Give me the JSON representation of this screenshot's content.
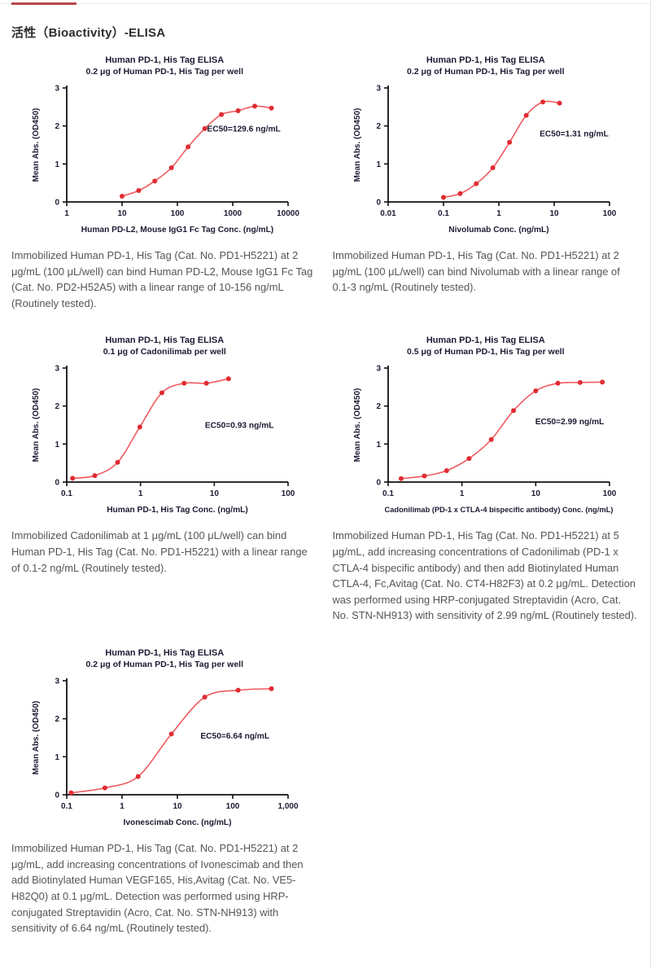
{
  "header": {
    "heading": "活性（Bioactivity）-ELISA",
    "accent_color": "#b9484d"
  },
  "chart_data": [
    {
      "type": "line",
      "title": "Human PD-1, His Tag ELISA",
      "subtitle": "0.2 μg of Human PD-1, His Tag per well",
      "ylabel": "Mean Abs. (OD450)",
      "xlabel": "Human PD-L2, Mouse IgG1 Fc Tag Conc. (ng/mL)",
      "x_scale": "log",
      "x_range": [
        1,
        10000
      ],
      "y_range": [
        0,
        3
      ],
      "x_ticks": [
        1,
        10,
        100,
        1000,
        10000
      ],
      "x_tick_labels": [
        "1",
        "10",
        "100",
        "1000",
        "10000"
      ],
      "y_ticks": [
        0,
        1,
        2,
        3
      ],
      "points": [
        [
          10,
          0.15
        ],
        [
          20,
          0.3
        ],
        [
          39,
          0.55
        ],
        [
          78,
          0.9
        ],
        [
          156,
          1.45
        ],
        [
          313,
          1.93
        ],
        [
          625,
          2.3
        ],
        [
          1250,
          2.4
        ],
        [
          2500,
          2.52
        ],
        [
          5000,
          2.47
        ]
      ],
      "ec50_label": "EC50=129.6 ng/mL",
      "annotation_pos": {
        "x_frac": 0.8,
        "y_od": 1.85
      },
      "curve_color": "#f05a5e",
      "point_color": "#e02c32",
      "grid": false,
      "legend": "none"
    },
    {
      "type": "line",
      "title": "Human PD-1, His Tag ELISA",
      "subtitle": "0.2 μg of Human PD-1, His Tag per well",
      "ylabel": "Mean Abs. (OD450)",
      "xlabel": "Nivolumab Conc. (ng/mL)",
      "x_scale": "log",
      "x_range": [
        0.01,
        100
      ],
      "y_range": [
        0,
        3
      ],
      "x_ticks": [
        0.01,
        0.1,
        1,
        10,
        100
      ],
      "x_tick_labels": [
        "0.01",
        "0.1",
        "1",
        "10",
        "100"
      ],
      "y_ticks": [
        0,
        1,
        2,
        3
      ],
      "points": [
        [
          0.1,
          0.12
        ],
        [
          0.2,
          0.22
        ],
        [
          0.39,
          0.48
        ],
        [
          0.78,
          0.9
        ],
        [
          1.56,
          1.57
        ],
        [
          3.13,
          2.28
        ],
        [
          6.25,
          2.63
        ],
        [
          12.5,
          2.6
        ]
      ],
      "ec50_label": "EC50=1.31 ng/mL",
      "annotation_pos": {
        "x_frac": 0.84,
        "y_od": 1.72
      },
      "curve_color": "#f05a5e",
      "point_color": "#e02c32",
      "grid": false,
      "legend": "none"
    },
    {
      "type": "line",
      "title": "Human PD-1, His Tag ELISA",
      "subtitle": "0.1 μg of Cadonilimab per well",
      "ylabel": "Mean Abs. (OD450)",
      "xlabel": "Human PD-1, His Tag Conc. (ng/mL)",
      "x_scale": "log",
      "x_range": [
        0.1,
        100
      ],
      "y_range": [
        0,
        3
      ],
      "x_ticks": [
        0.1,
        1,
        10,
        100
      ],
      "x_tick_labels": [
        "0.1",
        "1",
        "10",
        "100"
      ],
      "y_ticks": [
        0,
        1,
        2,
        3
      ],
      "points": [
        [
          0.12,
          0.1
        ],
        [
          0.24,
          0.17
        ],
        [
          0.49,
          0.52
        ],
        [
          0.98,
          1.45
        ],
        [
          1.95,
          2.35
        ],
        [
          3.9,
          2.6
        ],
        [
          7.8,
          2.6
        ],
        [
          15.6,
          2.72
        ]
      ],
      "ec50_label": "EC50=0.93 ng/mL",
      "annotation_pos": {
        "x_frac": 0.78,
        "y_od": 1.42
      },
      "curve_color": "#f05a5e",
      "point_color": "#e02c32",
      "grid": false,
      "legend": "none"
    },
    {
      "type": "line",
      "title": "Human PD-1, His Tag ELISA",
      "subtitle": "0.5 μg of Human PD-1, His Tag per well",
      "ylabel": "Mean Abs. (OD450)",
      "xlabel": "Cadonilimab (PD-1 x CTLA-4 bispecific antibody) Conc. (ng/mL)",
      "x_scale": "log",
      "x_range": [
        0.1,
        100
      ],
      "y_range": [
        0,
        3
      ],
      "x_ticks": [
        0.1,
        1,
        10,
        100
      ],
      "x_tick_labels": [
        "0.1",
        "1",
        "10",
        "100"
      ],
      "y_ticks": [
        0,
        1,
        2,
        3
      ],
      "points": [
        [
          0.15,
          0.09
        ],
        [
          0.31,
          0.16
        ],
        [
          0.62,
          0.3
        ],
        [
          1.25,
          0.62
        ],
        [
          2.5,
          1.12
        ],
        [
          5,
          1.88
        ],
        [
          10,
          2.4
        ],
        [
          20,
          2.6
        ],
        [
          40,
          2.62
        ],
        [
          80,
          2.63
        ]
      ],
      "ec50_label": "EC50=2.99 ng/mL",
      "annotation_pos": {
        "x_frac": 0.82,
        "y_od": 1.52
      },
      "curve_color": "#f05a5e",
      "point_color": "#e02c32",
      "grid": false,
      "legend": "none"
    },
    {
      "type": "line",
      "title": "Human PD-1, His Tag ELISA",
      "subtitle": "0.2 μg of Human PD-1, His Tag per well",
      "ylabel": "Mean Abs. (OD450)",
      "xlabel": "Ivonescimab Conc. (ng/mL)",
      "x_scale": "log",
      "x_range": [
        0.1,
        1000
      ],
      "y_range": [
        0,
        3
      ],
      "x_ticks": [
        0.1,
        1,
        10,
        100,
        1000
      ],
      "x_tick_labels": [
        "0.1",
        "1",
        "10",
        "100",
        "1,000"
      ],
      "y_ticks": [
        0,
        1,
        2,
        3
      ],
      "points": [
        [
          0.12,
          0.05
        ],
        [
          0.49,
          0.18
        ],
        [
          1.95,
          0.48
        ],
        [
          7.8,
          1.6
        ],
        [
          31.2,
          2.57
        ],
        [
          125,
          2.75
        ],
        [
          500,
          2.79
        ]
      ],
      "ec50_label": "EC50=6.64 ng/mL",
      "annotation_pos": {
        "x_frac": 0.76,
        "y_od": 1.48
      },
      "curve_color": "#f05a5e",
      "point_color": "#e02c32",
      "grid": false,
      "legend": "none"
    }
  ],
  "captions": [
    "Immobilized Human PD-1, His Tag (Cat. No. PD1-H5221) at 2 μg/mL (100 μL/well) can bind Human PD-L2, Mouse IgG1 Fc Tag (Cat. No. PD2-H52A5) with a linear range of 10-156 ng/mL (Routinely tested).",
    "Immobilized Human PD-1, His Tag (Cat. No. PD1-H5221) at 2 μg/mL (100 μL/well) can bind Nivolumab with a linear range of 0.1-3 ng/mL (Routinely tested).",
    "Immobilized Cadonilimab at 1 μg/mL (100 μL/well) can bind Human PD-1, His Tag (Cat. No. PD1-H5221) with a linear range of 0.1-2 ng/mL (Routinely tested).",
    "Immobilized Human PD-1, His Tag (Cat. No. PD1-H5221) at 5 μg/mL, add increasing concentrations of Cadonilimab (PD-1 x CTLA-4 bispecific antibody) and then add Biotinylated Human CTLA-4, Fc,Avitag (Cat. No. CT4-H82F3) at 0.2 μg/mL. Detection was performed using HRP-conjugated Streptavidin (Acro, Cat. No. STN-NH913) with sensitivity of 2.99 ng/mL (Routinely tested).",
    "Immobilized Human PD-1, His Tag (Cat. No. PD1-H5221) at 2 μg/mL, add increasing concentrations of Ivonescimab and then add Biotinylated Human VEGF165, His,Avitag (Cat. No. VE5-H82Q0) at 0.1 μg/mL. Detection was performed using HRP-conjugated Streptavidin (Acro, Cat. No. STN-NH913) with sensitivity of 6.64 ng/mL (Routinely tested)."
  ]
}
